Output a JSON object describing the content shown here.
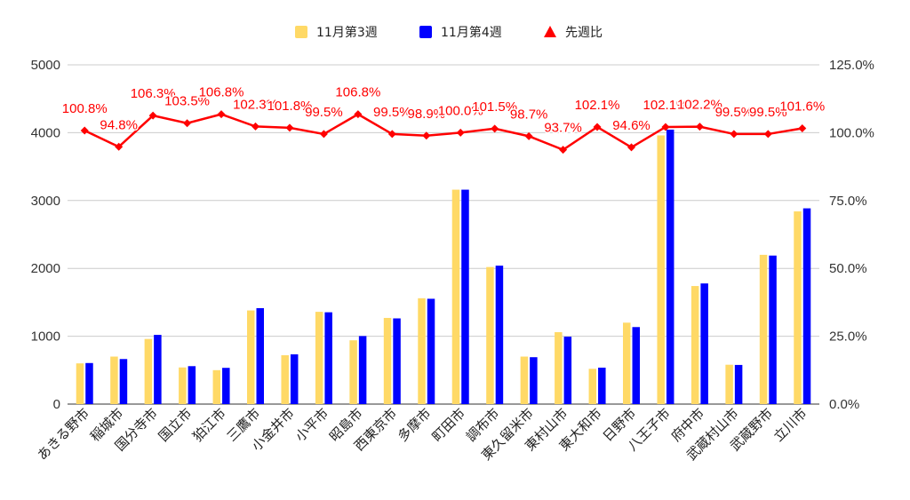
{
  "chart_data": {
    "type": "bar",
    "categories": [
      "あきる野市",
      "稲城市",
      "国分寺市",
      "国立市",
      "狛江市",
      "三鷹市",
      "小金井市",
      "小平市",
      "昭島市",
      "西東京市",
      "多摩市",
      "町田市",
      "調布市",
      "東久留米市",
      "東村山市",
      "東大和市",
      "日野市",
      "八王子市",
      "府中市",
      "武蔵村山市",
      "武蔵野市",
      "立川市"
    ],
    "series": [
      {
        "name": "11月第3週",
        "axis": "left",
        "color": "#ffd966",
        "values": [
          600,
          700,
          960,
          540,
          500,
          1380,
          720,
          1360,
          940,
          1270,
          1560,
          3160,
          2020,
          700,
          1060,
          520,
          1200,
          3960,
          1740,
          580,
          2200,
          2840
        ]
      },
      {
        "name": "11月第4週",
        "axis": "left",
        "color": "#0000ff",
        "values": [
          605,
          664,
          1020,
          559,
          534,
          1414,
          733,
          1353,
          1003,
          1263,
          1552,
          3160,
          2040,
          691,
          993,
          537,
          1135,
          4045,
          1778,
          577,
          2189,
          2885
        ]
      },
      {
        "name": "先週比",
        "axis": "right",
        "type": "line",
        "color": "#ff0000",
        "marker": "diamond",
        "values": [
          100.8,
          94.8,
          106.3,
          103.5,
          106.8,
          102.3,
          101.8,
          99.5,
          106.8,
          99.5,
          98.9,
          100.0,
          101.5,
          98.7,
          93.7,
          102.1,
          94.6,
          102.1,
          102.2,
          99.5,
          99.5,
          101.6
        ],
        "labels": [
          "100.8%",
          "94.8%",
          "106.3%",
          "103.5%",
          "106.8%",
          "102.3%",
          "101.8%",
          "99.5%",
          "106.8%",
          "99.5%",
          "98.9%",
          "100.0%",
          "101.5%",
          "98.7%",
          "93.7%",
          "102.1%",
          "94.6%",
          "102.1%",
          "102.2%",
          "99.5%",
          "99.5%",
          "101.6%"
        ]
      }
    ],
    "y_left": {
      "min": 0,
      "max": 5000,
      "ticks": [
        "0",
        "1000",
        "2000",
        "3000",
        "4000",
        "5000"
      ]
    },
    "y_right": {
      "min": 0,
      "max": 125,
      "ticks": [
        "0.0%",
        "25.0%",
        "50.0%",
        "75.0%",
        "100.0%",
        "125.0%"
      ]
    },
    "legend": {
      "position": "top",
      "items": [
        {
          "label": "11月第3週",
          "color": "#ffd966",
          "shape": "square"
        },
        {
          "label": "11月第4週",
          "color": "#0000ff",
          "shape": "square"
        },
        {
          "label": "先週比",
          "color": "#ff0000",
          "shape": "triangle"
        }
      ]
    },
    "grid": true
  }
}
